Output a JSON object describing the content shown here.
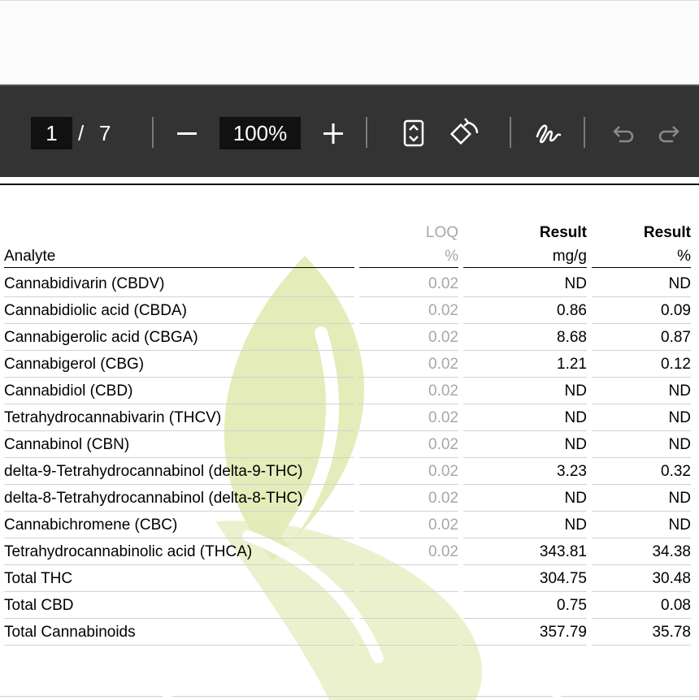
{
  "toolbar": {
    "current_page": "1",
    "page_separator": "/",
    "total_pages": "7",
    "zoom_level": "100%",
    "zoom_out_icon": "minus-icon",
    "zoom_in_icon": "plus-icon",
    "fit_icon": "fit-page-icon",
    "rotate_icon": "rotate-icon",
    "sign_icon": "signature-icon",
    "undo_icon": "undo-icon",
    "redo_icon": "redo-icon"
  },
  "table": {
    "headers": {
      "analyte": "Analyte",
      "loq_top": "LOQ",
      "loq_unit": "%",
      "result_mg_top": "Result",
      "result_mg_unit": "mg/g",
      "result_pct_top": "Result",
      "result_pct_unit": "%"
    },
    "rows": [
      {
        "analyte": "Cannabidivarin (CBDV)",
        "loq": "0.02",
        "mg_g": "ND",
        "pct": "ND"
      },
      {
        "analyte": "Cannabidiolic acid (CBDA)",
        "loq": "0.02",
        "mg_g": "0.86",
        "pct": "0.09"
      },
      {
        "analyte": "Cannabigerolic acid (CBGA)",
        "loq": "0.02",
        "mg_g": "8.68",
        "pct": "0.87"
      },
      {
        "analyte": "Cannabigerol (CBG)",
        "loq": "0.02",
        "mg_g": "1.21",
        "pct": "0.12"
      },
      {
        "analyte": "Cannabidiol (CBD)",
        "loq": "0.02",
        "mg_g": "ND",
        "pct": "ND"
      },
      {
        "analyte": "Tetrahydrocannabivarin (THCV)",
        "loq": "0.02",
        "mg_g": "ND",
        "pct": "ND"
      },
      {
        "analyte": "Cannabinol (CBN)",
        "loq": "0.02",
        "mg_g": "ND",
        "pct": "ND"
      },
      {
        "analyte": "delta-9-Tetrahydrocannabinol (delta-9-THC)",
        "loq": "0.02",
        "mg_g": "3.23",
        "pct": "0.32"
      },
      {
        "analyte": "delta-8-Tetrahydrocannabinol (delta-8-THC)",
        "loq": "0.02",
        "mg_g": "ND",
        "pct": "ND"
      },
      {
        "analyte": "Cannabichromene (CBC)",
        "loq": "0.02",
        "mg_g": "ND",
        "pct": "ND"
      },
      {
        "analyte": "Tetrahydrocannabinolic acid (THCA)",
        "loq": "0.02",
        "mg_g": "343.81",
        "pct": "34.38"
      },
      {
        "analyte": "Total THC",
        "loq": "",
        "mg_g": "304.75",
        "pct": "30.48"
      },
      {
        "analyte": "Total CBD",
        "loq": "",
        "mg_g": "0.75",
        "pct": "0.08"
      },
      {
        "analyte": "Total Cannabinoids",
        "loq": "",
        "mg_g": "357.79",
        "pct": "35.78"
      }
    ]
  },
  "colors": {
    "toolbar_bg": "#333333",
    "watermark_leaf": "#d2e08a",
    "muted_text": "#a7a7a7"
  }
}
